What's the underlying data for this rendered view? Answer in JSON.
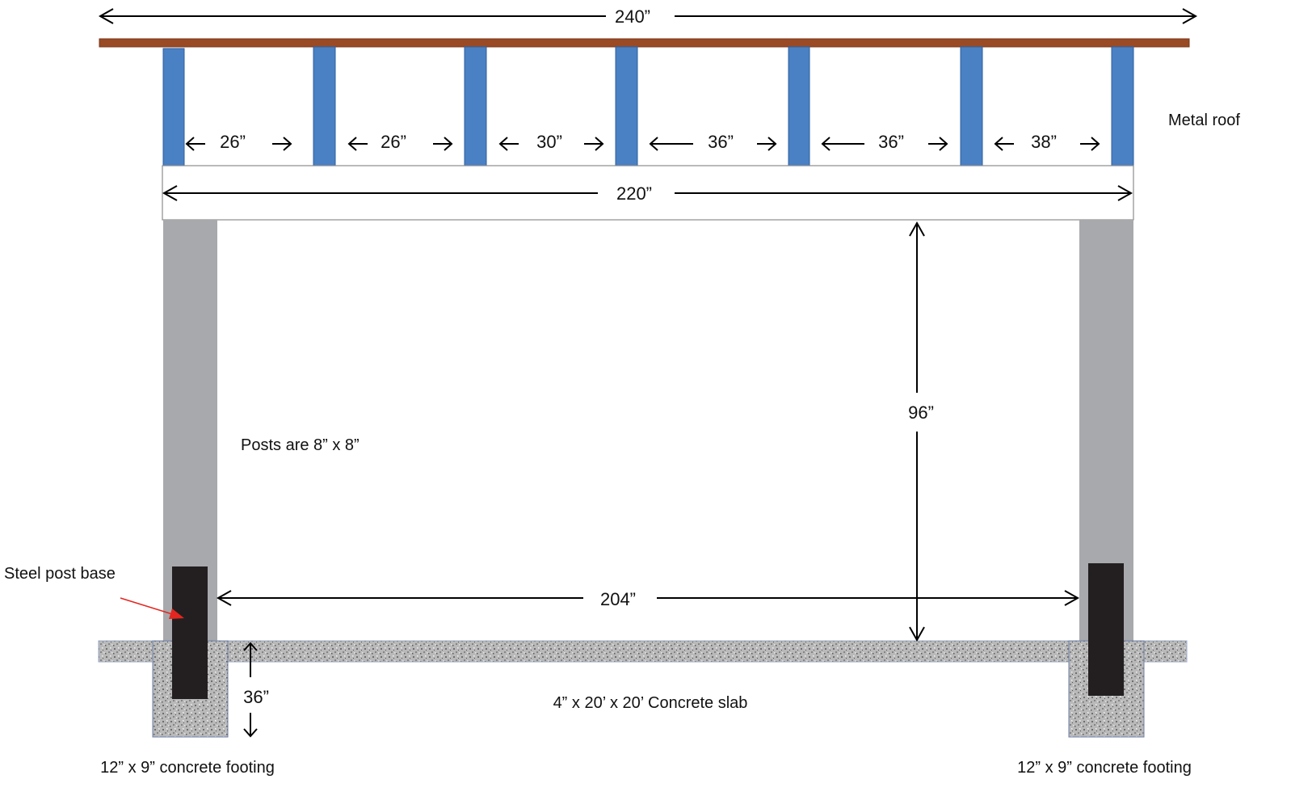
{
  "diagram": {
    "overall_width_label": "240”",
    "beam_width_label": "220”",
    "post_clear_span_label": "204”",
    "post_height_label": "96”",
    "footing_depth_label": "36”",
    "purlin_spacings": [
      "26”",
      "26”",
      "30”",
      "36”",
      "36”",
      "38”"
    ],
    "roof_label": "Metal roof",
    "posts_note": "Posts are 8” x 8”",
    "post_base_label": "Steel post base",
    "slab_label": "4” x 20’ x 20’ Concrete slab",
    "footing_left_label": "12” x 9” concrete footing",
    "footing_right_label": "12” x 9” concrete footing"
  },
  "colors": {
    "roof": "#9a4a24",
    "purlin": "#4a80c4",
    "post": "#a7a9ac",
    "post_base": "#231f20",
    "concrete_base": "#b8b8b8",
    "leader_arrow": "#e3261f"
  }
}
